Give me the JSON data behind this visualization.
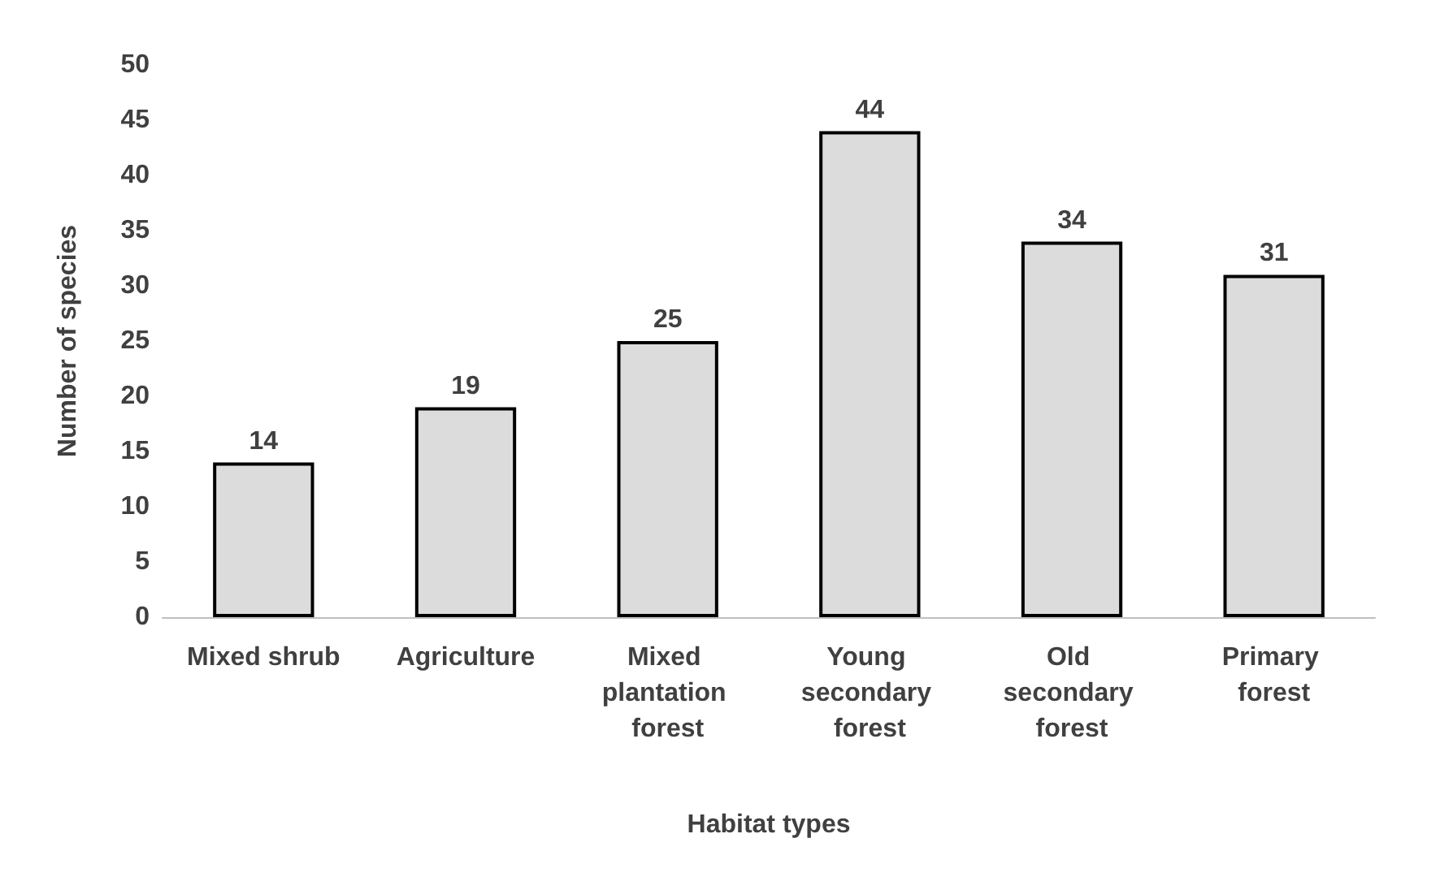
{
  "chart_data": {
    "type": "bar",
    "xlabel": "Habitat types",
    "ylabel": "Number of species",
    "categories": [
      "Mixed shrub",
      "Agriculture",
      "Mixed plantation forest",
      "Young secondary forest",
      "Old secondary forest",
      "Primary forest"
    ],
    "values": [
      14,
      19,
      25,
      44,
      34,
      31
    ],
    "color": "#dcdcdc",
    "data_labels": true,
    "grid": false,
    "ylim": [
      0,
      50
    ],
    "yticks": [
      0,
      5,
      10,
      15,
      20,
      25,
      30,
      35,
      40,
      45,
      50
    ]
  }
}
